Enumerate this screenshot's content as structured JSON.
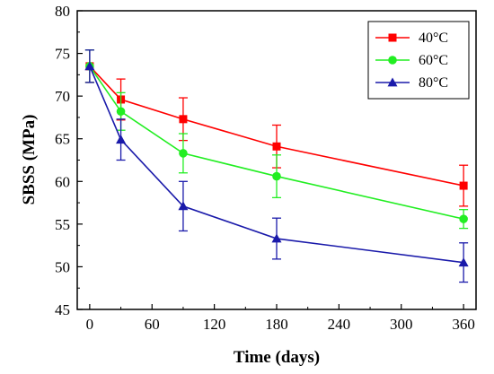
{
  "chart_data": {
    "type": "line",
    "xlabel": "Time (days)",
    "ylabel": "SBSS (MPa)",
    "xlim": [
      -12,
      372
    ],
    "ylim": [
      45,
      80
    ],
    "xticks": [
      0,
      60,
      120,
      180,
      240,
      300,
      360
    ],
    "yticks": [
      45,
      50,
      55,
      60,
      65,
      70,
      75,
      80
    ],
    "xtick_labels": [
      "0",
      "60",
      "120",
      "180",
      "240",
      "300",
      "360"
    ],
    "ytick_labels": [
      "45",
      "50",
      "55",
      "60",
      "65",
      "70",
      "75",
      "80"
    ],
    "x": [
      0,
      30,
      90,
      180,
      360
    ],
    "legend_position": "top-right",
    "grid": false,
    "series": [
      {
        "name": "40°C",
        "color": "#ff0000",
        "marker": "square",
        "values": [
          73.5,
          69.6,
          67.3,
          64.1,
          59.5
        ],
        "errors": [
          1.9,
          2.4,
          2.5,
          2.5,
          2.4
        ]
      },
      {
        "name": "60°C",
        "color": "#22ee22",
        "marker": "circle",
        "values": [
          73.5,
          68.2,
          63.3,
          60.6,
          55.6
        ],
        "errors": [
          1.9,
          2.2,
          2.3,
          2.5,
          1.1
        ]
      },
      {
        "name": "80°C",
        "color": "#1a1aaa",
        "marker": "triangle",
        "values": [
          73.5,
          64.9,
          57.1,
          53.3,
          50.5
        ],
        "errors": [
          1.9,
          2.4,
          2.9,
          2.4,
          2.3
        ]
      }
    ]
  }
}
